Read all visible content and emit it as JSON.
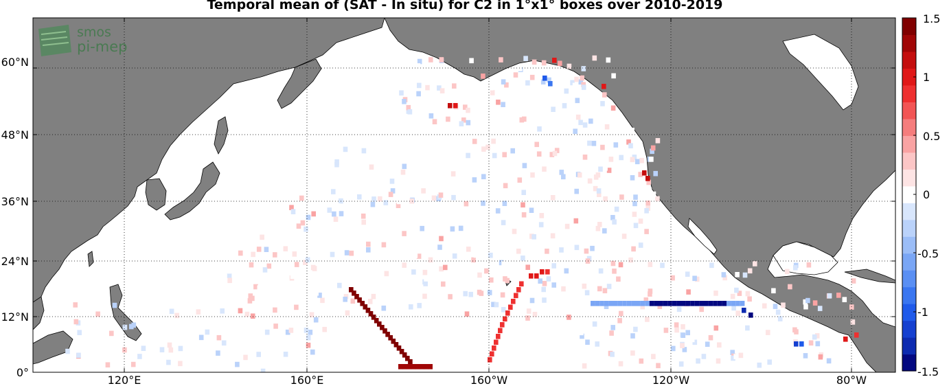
{
  "title": "Temporal mean of (SAT - In situ) for C2 in 1°x1° boxes over 2010-2019",
  "logo": {
    "line1": "smos",
    "line2": "pi-mep"
  },
  "lat_labels": [
    "0°",
    "12°N",
    "24°N",
    "36°N",
    "48°N",
    "60°N"
  ],
  "lon_labels": [
    "120°E",
    "160°E",
    "160°W",
    "120°W",
    "80°W"
  ],
  "colorbar": {
    "tick_labels": [
      "1.5",
      "1",
      "0.5",
      "0",
      "-0.5",
      "-1",
      "-1.5"
    ],
    "range": [
      -1.5,
      1.5
    ],
    "palette": [
      "#030880",
      "#0d2bb0",
      "#1540d0",
      "#1f5aea",
      "#3a76f0",
      "#5a8ff3",
      "#7aa6f5",
      "#9bbdf7",
      "#bad2fa",
      "#d8e6fc",
      "#ffffff",
      "#fde4e4",
      "#fcc6c6",
      "#f9a3a3",
      "#f57d7d",
      "#f25555",
      "#ee3030",
      "#e01818",
      "#c40e0e",
      "#a00606",
      "#800000"
    ]
  },
  "map": {
    "ocean_color": "#ffffff",
    "land_color": "#808080",
    "grid": "dotted"
  }
}
